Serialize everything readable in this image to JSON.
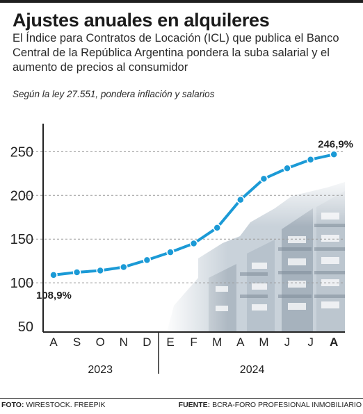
{
  "header": {
    "title": "Ajustes anuales en alquileres",
    "subtitle": "El Índice para Contratos de Locación (ICL) que publica el Banco Central de la República Argentina pondera la suba salarial y el aumento de precios al consumidor",
    "note": "Según la ley 27.551, pondera inflación y salarios"
  },
  "footer": {
    "photo_label": "FOTO:",
    "photo_credit": "WIRESTOCK. FREEPIK",
    "source_label": "FUENTE:",
    "source_text": "BCRA-FORO PROFESIONAL INMOBILIARIO"
  },
  "colors": {
    "line": "#1b9ad6",
    "point_fill": "#1b9ad6",
    "point_stroke": "#ffffff",
    "axis": "#222222",
    "grid": "#9a9a9a",
    "text": "#222222"
  },
  "chart_data": {
    "type": "line",
    "categories": [
      "A",
      "S",
      "O",
      "N",
      "D",
      "E",
      "F",
      "M",
      "A",
      "M",
      "J",
      "J",
      "A"
    ],
    "values": [
      108.9,
      112,
      114,
      118,
      126,
      135,
      145,
      163,
      195,
      219,
      231,
      241,
      246.9
    ],
    "groups": [
      {
        "label": "2023",
        "categories": [
          "A",
          "S",
          "O",
          "N",
          "D"
        ]
      },
      {
        "label": "2024",
        "categories": [
          "E",
          "F",
          "M",
          "A",
          "M",
          "J",
          "J",
          "A"
        ]
      }
    ],
    "yticks": [
      50,
      100,
      150,
      200,
      250
    ],
    "ylim": [
      50,
      280
    ],
    "grid": "horizontal dashed",
    "data_labels": [
      {
        "index": 0,
        "text": "108,9%"
      },
      {
        "index": 12,
        "text": "246,9%"
      }
    ],
    "highlight_category_index": 12,
    "background_image": "buildings-photo"
  }
}
